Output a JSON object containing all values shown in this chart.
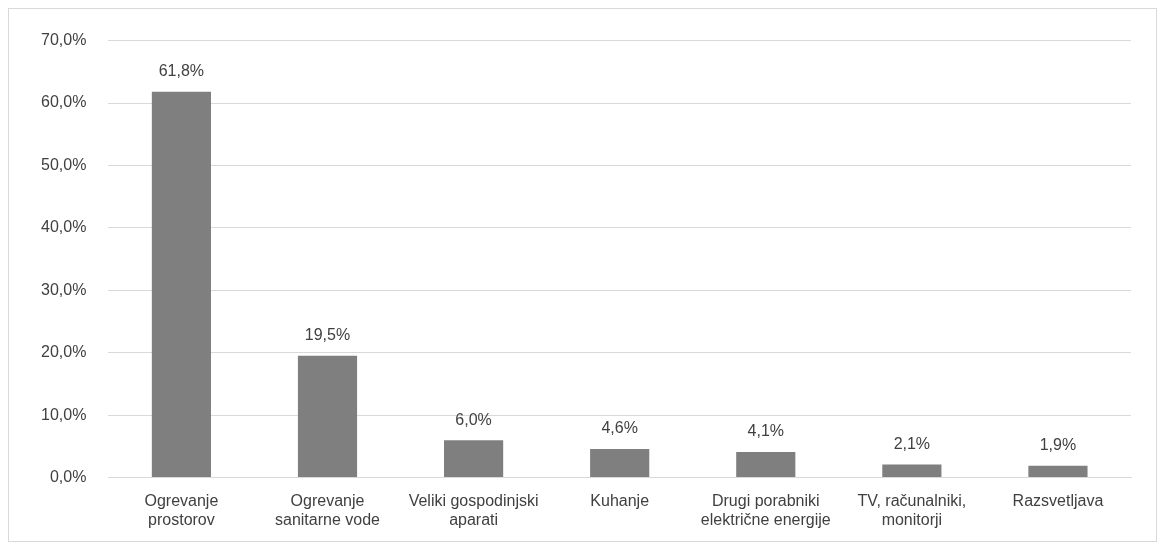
{
  "chart_data": {
    "type": "bar",
    "categories": [
      "Ogrevanje prostorov",
      "Ogrevanje sanitarne vode",
      "Veliki gospodinjski aparati",
      "Kuhanje",
      "Drugi porabniki električne energije",
      "TV, računalniki, monitorji",
      "Razsvetljava"
    ],
    "values": [
      61.8,
      19.5,
      6.0,
      4.6,
      4.1,
      2.1,
      1.9
    ],
    "value_labels": [
      "61,8%",
      "19,5%",
      "6,0%",
      "4,6%",
      "4,1%",
      "2,1%",
      "1,9%"
    ],
    "color": "#7f7f7f",
    "ylim": [
      0,
      70
    ],
    "yticks": [
      {
        "value": 0,
        "label": "0,0%"
      },
      {
        "value": 10,
        "label": "10,0%"
      },
      {
        "value": 20,
        "label": "20,0%"
      },
      {
        "value": 30,
        "label": "30,0%"
      },
      {
        "value": 40,
        "label": "40,0%"
      },
      {
        "value": 50,
        "label": "50,0%"
      },
      {
        "value": 60,
        "label": "60,0%"
      },
      {
        "value": 70,
        "label": "70,0%"
      }
    ],
    "grid": "y",
    "legend": false
  }
}
